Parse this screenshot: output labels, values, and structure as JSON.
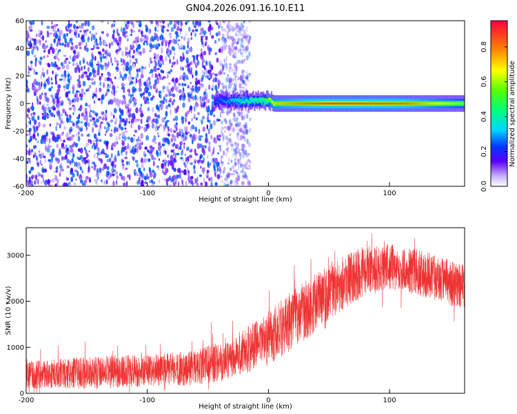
{
  "title": "GN04.2026.091.16.10.E11",
  "chart_data": [
    {
      "type": "heatmap",
      "title": "GN04.2026.091.16.10.E11",
      "xlabel": "Height of straight line (km)",
      "ylabel": "Frequency (Hz)",
      "xlim": [
        -200,
        162
      ],
      "ylim": [
        -60,
        60
      ],
      "xticks": [
        -200,
        -100,
        0,
        100
      ],
      "yticks": [
        -60,
        -40,
        -20,
        0,
        20,
        40,
        60
      ],
      "colorbar": {
        "label": "Normalized spectral amplitude",
        "range": [
          0,
          0.95
        ],
        "ticks": [
          0,
          0.2,
          0.4,
          0.6,
          0.8
        ]
      },
      "noise_region": {
        "x": [
          -200,
          -40
        ],
        "freq": [
          -60,
          60
        ],
        "amplitude": [
          0.05,
          0.25
        ]
      },
      "ridge": [
        {
          "x": -45,
          "freq": 2,
          "amplitude": 0.25
        },
        {
          "x": -35,
          "freq": 1,
          "amplitude": 0.3
        },
        {
          "x": -25,
          "freq": -1,
          "amplitude": 0.4
        },
        {
          "x": -15,
          "freq": 0.5,
          "amplitude": 0.45
        },
        {
          "x": -5,
          "freq": 1,
          "amplitude": 0.5
        },
        {
          "x": 5,
          "freq": 0,
          "amplitude": 0.75
        },
        {
          "x": 50,
          "freq": 0,
          "amplitude": 0.9
        },
        {
          "x": 110,
          "freq": 0,
          "amplitude": 0.85
        },
        {
          "x": 162,
          "freq": 0,
          "amplitude": 0.6
        }
      ]
    },
    {
      "type": "line",
      "xlabel": "Height of straight line (km)",
      "ylabel": "SNR (10 * v/v)",
      "xlim": [
        -200,
        162
      ],
      "ylim": [
        0,
        3600
      ],
      "xticks": [
        -200,
        -100,
        0,
        100
      ],
      "yticks": [
        0,
        1000,
        2000,
        3000
      ],
      "series": [
        {
          "name": "SNR",
          "color": "#ee3333",
          "envelope": {
            "x": [
              -200,
              -150,
              -100,
              -60,
              -40,
              -20,
              0,
              20,
              40,
              60,
              80,
              100,
              120,
              140,
              162
            ],
            "mean": [
              400,
              450,
              500,
              550,
              700,
              900,
              1200,
              1600,
              2000,
              2400,
              2650,
              2750,
              2650,
              2500,
              2300
            ],
            "spread": [
              300,
              350,
              350,
              380,
              450,
              500,
              600,
              650,
              650,
              600,
              550,
              500,
              500,
              500,
              500
            ]
          }
        }
      ]
    }
  ]
}
